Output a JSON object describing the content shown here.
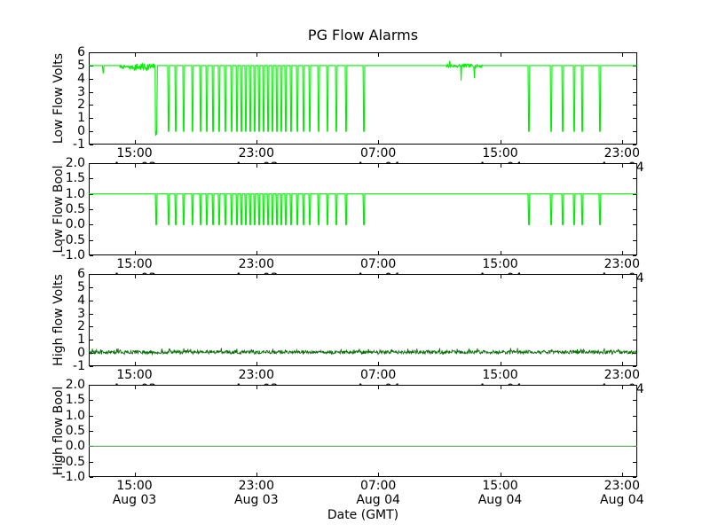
{
  "figure": {
    "title": "PG Flow Alarms",
    "xlabel": "Date (GMT)",
    "background": "#ffffff",
    "frame_color": "#000000",
    "text_color": "#000000"
  },
  "x_axis": {
    "range_hours": [
      12,
      48
    ],
    "range_description": "Aug 03 12:00 GMT to Aug 04 24:00 GMT",
    "grid": false,
    "major_ticks": [
      {
        "time": "15:00",
        "date": "Aug 03",
        "hour": 15
      },
      {
        "time": "23:00",
        "date": "Aug 03",
        "hour": 23
      },
      {
        "time": "07:00",
        "date": "Aug 04",
        "hour": 31
      },
      {
        "time": "15:00",
        "date": "Aug 04",
        "hour": 39
      },
      {
        "time": "23:00",
        "date": "Aug 04",
        "hour": 47
      }
    ]
  },
  "chart_data": [
    {
      "type": "line",
      "ylabel": "Low Flow Volts",
      "ylim": [
        -1,
        6
      ],
      "yticks": [
        "6",
        "5",
        "4",
        "3",
        "2",
        "1",
        "0",
        "-1"
      ],
      "series": [
        {
          "name": "low-flow-volts",
          "color": "#00ee00",
          "width": 1.1,
          "baseline_v": 5.0,
          "dip_v": 0.0,
          "partial_dips": [
            {
              "hour": 12.95,
              "v": 4.4
            }
          ],
          "noise_bands": [
            {
              "start": 14.05,
              "end": 16.3,
              "mean": 4.88,
              "amp": 0.25,
              "amp2": 0.6,
              "split": 14.9
            },
            {
              "start": 35.48,
              "end": 37.85,
              "mean": 4.97,
              "amp": 0.28,
              "spikes": [
                {
                  "hour": 35.7,
                  "v": 5.35
                },
                {
                  "hour": 36.45,
                  "v": 3.85
                },
                {
                  "hour": 37.3,
                  "v": 4.05
                }
              ]
            }
          ],
          "noisy_dip": {
            "start": 16.36,
            "end": 16.5,
            "points": [
              [
                16.38,
                -0.1
              ],
              [
                16.4,
                -0.32
              ],
              [
                16.42,
                0.02
              ],
              [
                16.44,
                -0.25
              ],
              [
                16.46,
                -0.05
              ]
            ]
          },
          "dips_hours": [
            17.24,
            17.71,
            18.23,
            18.81,
            19.34,
            19.75,
            20.16,
            20.56,
            20.97,
            21.38,
            21.73,
            22.02,
            22.31,
            22.6,
            22.89,
            23.18,
            23.48,
            23.77,
            24.06,
            24.35,
            24.64,
            24.93,
            25.28,
            25.69,
            26.1,
            26.51,
            27.09,
            27.67,
            28.25,
            28.89,
            30.06,
            40.89,
            42.35,
            43.11,
            43.86,
            44.39,
            45.55
          ]
        }
      ]
    },
    {
      "type": "line",
      "ylabel": "Low Flow Bool",
      "ylim": [
        -1,
        2
      ],
      "yticks": [
        "2.0",
        "1.5",
        "1.0",
        "0.5",
        "0.0",
        "-0.5",
        "-1.0"
      ],
      "series": [
        {
          "name": "low-flow-bool",
          "color": "#00ee00",
          "width": 1.2,
          "baseline_v": 1.0,
          "dip_v": 0.0,
          "dips_hours": [
            16.43,
            17.24,
            17.71,
            18.23,
            18.81,
            19.34,
            19.75,
            20.16,
            20.56,
            20.97,
            21.38,
            21.73,
            22.02,
            22.31,
            22.6,
            22.89,
            23.18,
            23.48,
            23.77,
            24.06,
            24.35,
            24.64,
            24.93,
            25.28,
            25.69,
            26.1,
            26.51,
            27.09,
            27.67,
            28.25,
            28.89,
            30.06,
            40.89,
            42.35,
            43.11,
            43.86,
            44.39,
            45.55
          ]
        }
      ]
    },
    {
      "type": "line",
      "ylabel": "High flow Volts",
      "ylim": [
        -1,
        6
      ],
      "yticks": [
        "6",
        "5",
        "4",
        "3",
        "2",
        "1",
        "0",
        "-1"
      ],
      "series": [
        {
          "name": "high-flow-volts",
          "color": "#0a6d0a",
          "width": 0.9,
          "noise_line": {
            "start": 12,
            "end": 48,
            "mean": 0.07,
            "amp": 0.26,
            "spike_p": 0.05,
            "spike_v": 0.18,
            "min": -0.1,
            "max": 0.45
          }
        }
      ]
    },
    {
      "type": "line",
      "ylabel": "High flow Bool",
      "ylim": [
        -1,
        2
      ],
      "yticks": [
        "2.0",
        "1.5",
        "1.0",
        "0.5",
        "0.0",
        "-0.5",
        "-1.0"
      ],
      "series": [
        {
          "name": "high-flow-bool",
          "color": "#63a963",
          "width": 1.1,
          "baseline_v": 0.0,
          "dip_v": 0.0,
          "dips_hours": []
        }
      ]
    }
  ]
}
